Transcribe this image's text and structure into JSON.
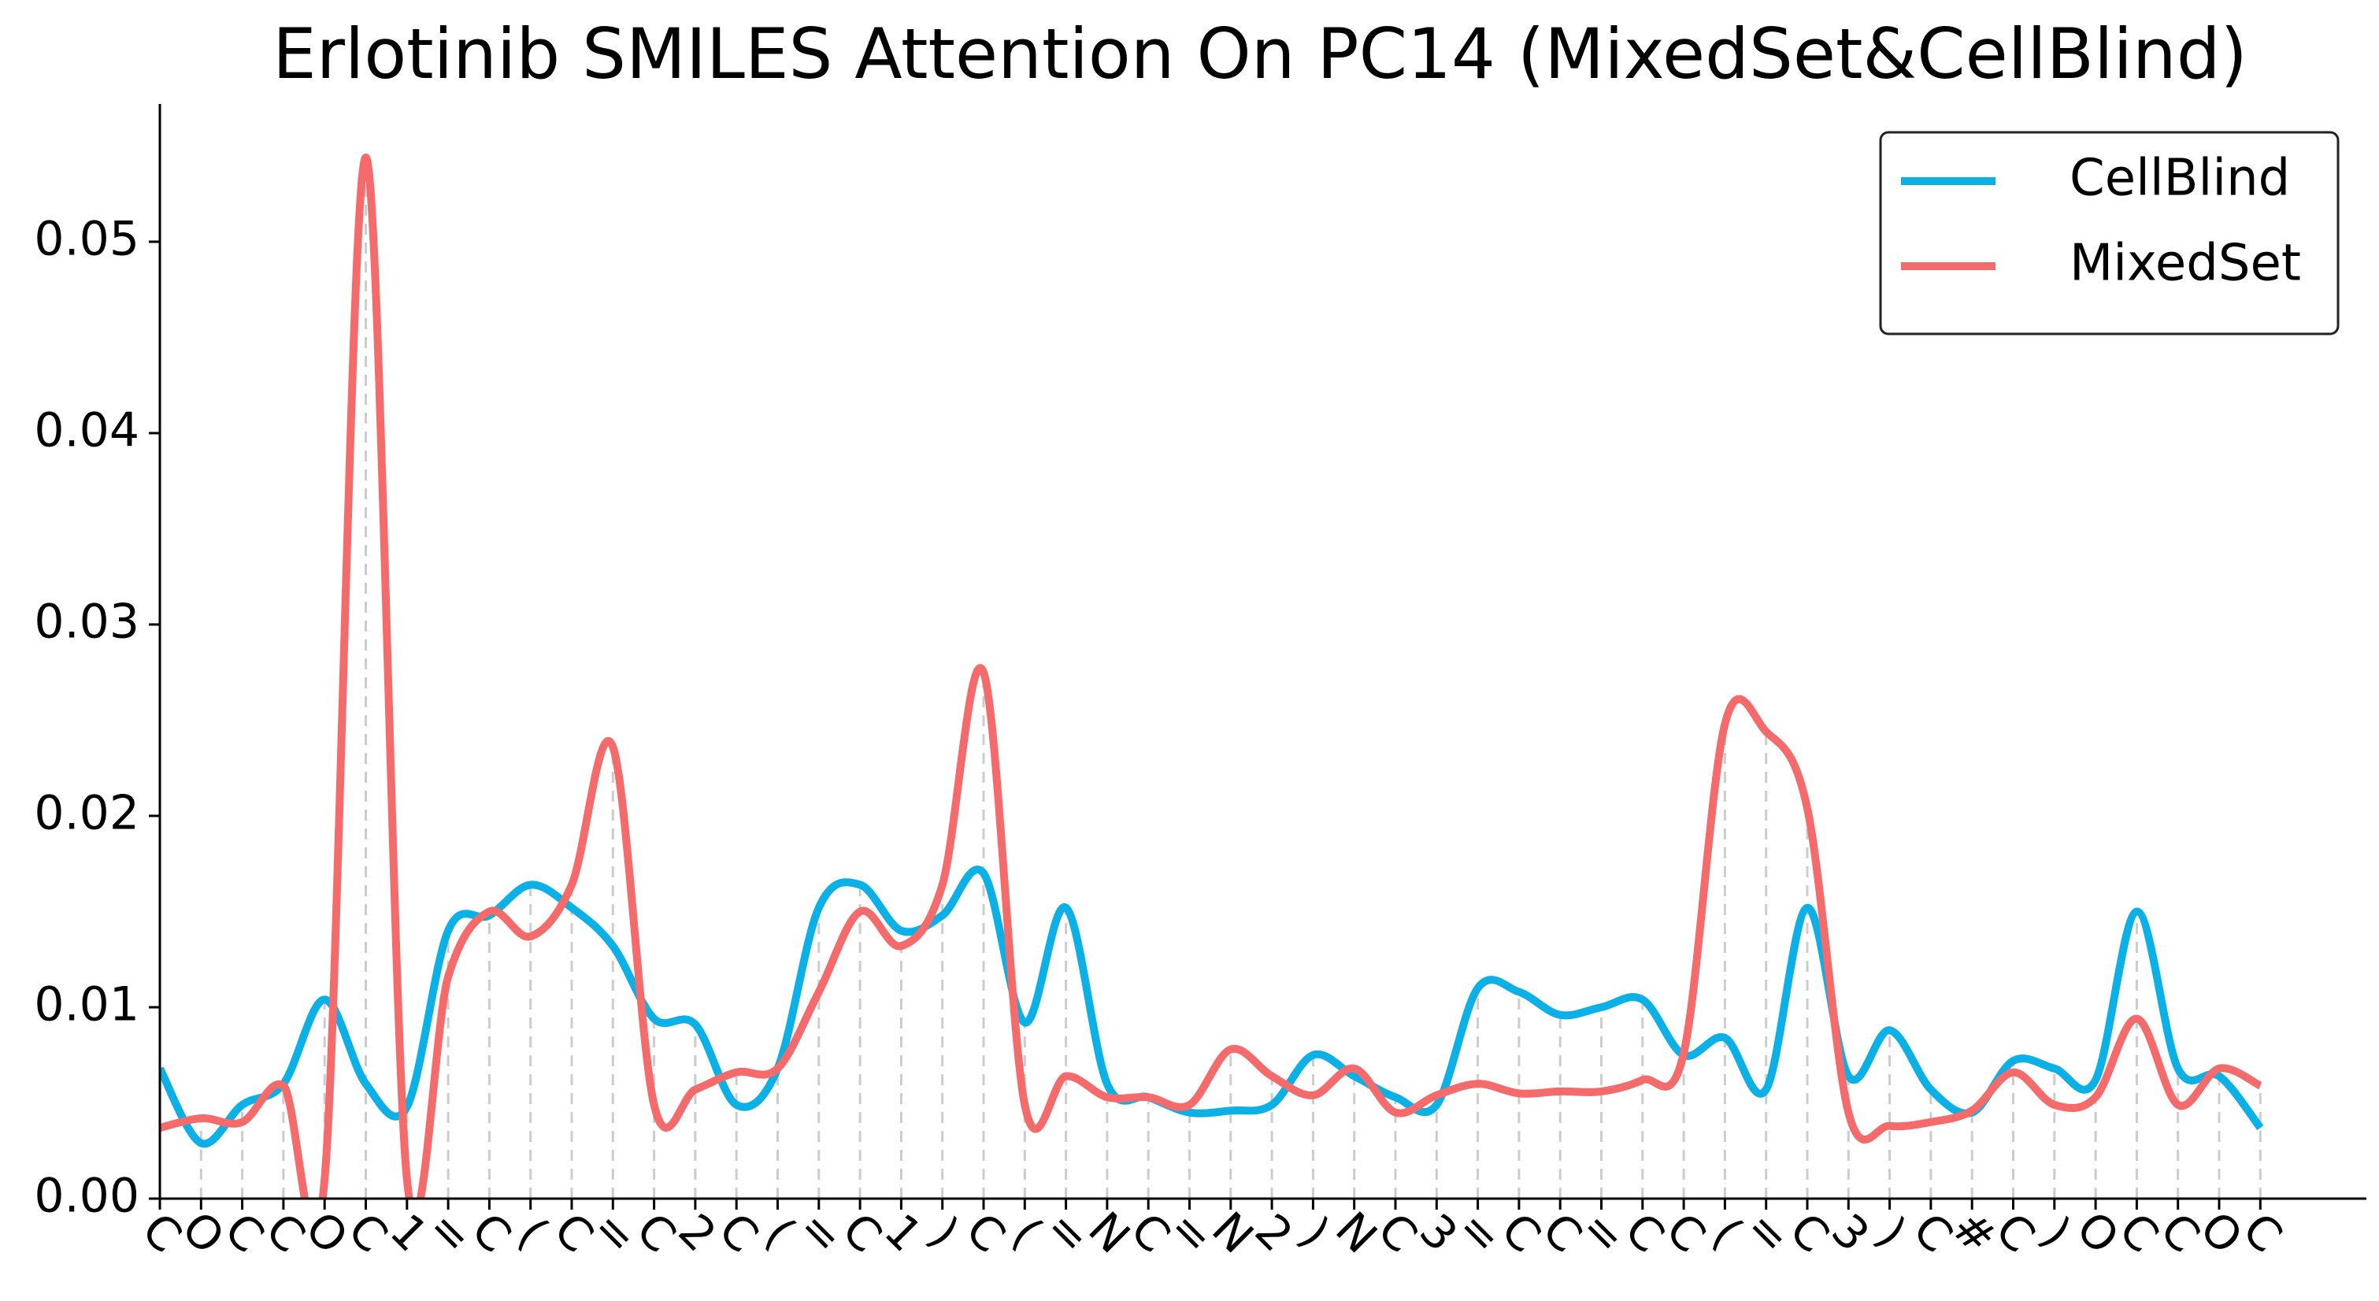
{
  "chart_data": {
    "type": "line",
    "title": "Erlotinib SMILES Attention On PC14 (MixedSet&CellBlind)",
    "categories": [
      "C",
      "O",
      "C",
      "C",
      "O",
      "C",
      "1",
      "=",
      "C",
      "(",
      "C",
      "=",
      "C",
      "2",
      "C",
      "(",
      "=",
      "C",
      "1",
      ")",
      "C",
      "(",
      "=",
      "N",
      "C",
      "=",
      "N",
      "2",
      ")",
      "N",
      "C",
      "3",
      "=",
      "C",
      "C",
      "=",
      "C",
      "C",
      "(",
      "=",
      "C",
      "3",
      ")",
      "C",
      "#",
      "C",
      ")",
      "O",
      "C",
      "C",
      "O",
      "C"
    ],
    "series": [
      {
        "name": "CellBlind",
        "color": "#0bb0e6",
        "values": [
          0.0068,
          0.0029,
          0.0049,
          0.006,
          0.0104,
          0.006,
          0.0048,
          0.014,
          0.0148,
          0.0164,
          0.0152,
          0.0132,
          0.0094,
          0.0091,
          0.0049,
          0.0068,
          0.0152,
          0.0164,
          0.014,
          0.0148,
          0.017,
          0.0092,
          0.0152,
          0.006,
          0.0053,
          0.0045,
          0.0046,
          0.0049,
          0.0075,
          0.0064,
          0.0053,
          0.0049,
          0.011,
          0.0108,
          0.0096,
          0.01,
          0.0104,
          0.0075,
          0.0084,
          0.0057,
          0.0152,
          0.0064,
          0.0088,
          0.0057,
          0.0045,
          0.0072,
          0.0068,
          0.0062,
          0.015,
          0.0068,
          0.0064,
          0.0037
        ]
      },
      {
        "name": "MixedSet",
        "color": "#f56b6b",
        "values": [
          0.0037,
          0.0042,
          0.004,
          0.0059,
          0.001,
          0.0544,
          0.001,
          0.0116,
          0.015,
          0.0137,
          0.0164,
          0.0236,
          0.0049,
          0.0057,
          0.0066,
          0.0068,
          0.0108,
          0.015,
          0.0132,
          0.0164,
          0.0275,
          0.0049,
          0.0064,
          0.0053,
          0.0053,
          0.0049,
          0.0078,
          0.0064,
          0.0054,
          0.0068,
          0.0045,
          0.0054,
          0.006,
          0.0055,
          0.0056,
          0.0056,
          0.0062,
          0.0076,
          0.0248,
          0.0244,
          0.0204,
          0.0045,
          0.0038,
          0.004,
          0.0046,
          0.0066,
          0.0049,
          0.0053,
          0.0094,
          0.0049,
          0.0068,
          0.0059
        ]
      }
    ],
    "ylim": [
      0,
      0.0572
    ],
    "yticks": [
      {
        "value": 0,
        "label": "0.00"
      },
      0.01,
      0.02,
      0.03,
      0.04,
      0.05
    ],
    "legend": "upper right"
  }
}
